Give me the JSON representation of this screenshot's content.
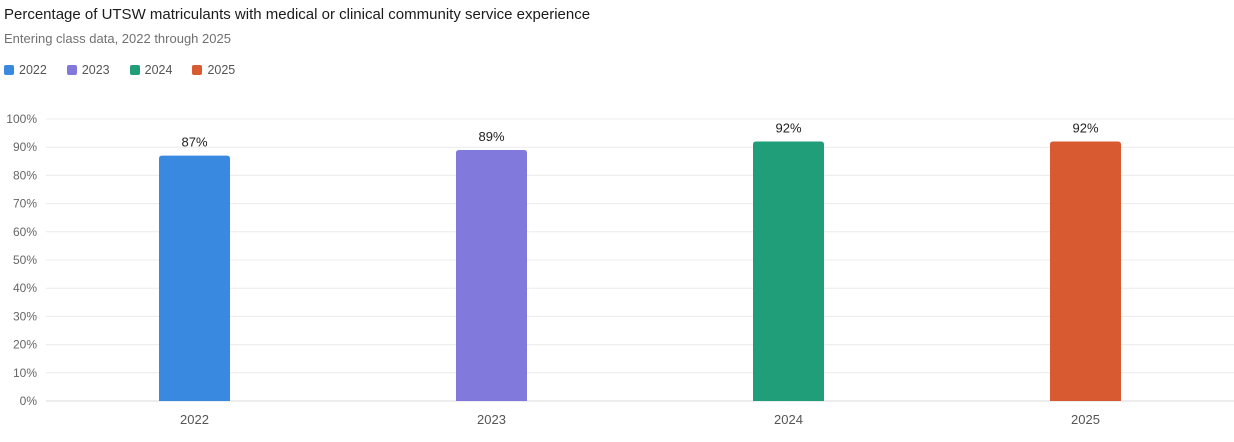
{
  "header": {
    "title": "Percentage of UTSW matriculants with medical or clinical community service experience",
    "subtitle": "Entering class data, 2022 through 2025"
  },
  "legend": [
    {
      "label": "2022",
      "color": "#3a89e0"
    },
    {
      "label": "2023",
      "color": "#8279dd"
    },
    {
      "label": "2024",
      "color": "#1f9e79"
    },
    {
      "label": "2025",
      "color": "#d85a31"
    }
  ],
  "chart_data": {
    "type": "bar",
    "title": "Percentage of UTSW matriculants with medical or clinical community service experience",
    "subtitle": "Entering class data, 2022 through 2025",
    "categories": [
      "2022",
      "2023",
      "2024",
      "2025"
    ],
    "values": [
      87,
      89,
      92,
      92
    ],
    "data_labels": [
      "87%",
      "89%",
      "92%",
      "92%"
    ],
    "colors": [
      "#3a89e0",
      "#8279dd",
      "#1f9e79",
      "#d85a31"
    ],
    "xlabel": "",
    "ylabel": "",
    "ylim": [
      0,
      100
    ],
    "yticks": [
      "0%",
      "10%",
      "20%",
      "30%",
      "40%",
      "50%",
      "60%",
      "70%",
      "80%",
      "90%",
      "100%"
    ],
    "grid": true,
    "legend_position": "top-left"
  }
}
